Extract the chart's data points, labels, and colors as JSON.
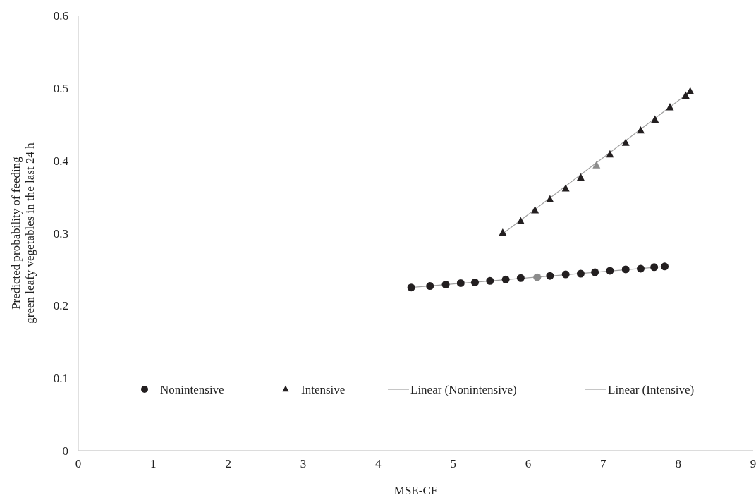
{
  "chart_data": {
    "type": "scatter",
    "xlabel": "MSE-CF",
    "ylabel": "Predicted probability of feeding green leafy vegetables in the last 24 h",
    "xlim": [
      0,
      9
    ],
    "ylim": [
      0,
      0.6
    ],
    "xticks": [
      0,
      1,
      2,
      3,
      4,
      5,
      6,
      7,
      8,
      9
    ],
    "yticks": [
      0,
      0.1,
      0.2,
      0.3,
      0.4,
      0.5,
      0.6
    ],
    "grid": false,
    "legend": "bottom",
    "series": [
      {
        "name": "Nonintensive",
        "marker": "circle",
        "color": "#231f20",
        "colors": [
          "#231f20",
          "#231f20",
          "#231f20",
          "#231f20",
          "#231f20",
          "#231f20",
          "#231f20",
          "#231f20",
          "#8c8c8c",
          "#231f20",
          "#231f20",
          "#231f20",
          "#231f20",
          "#231f20",
          "#231f20",
          "#231f20",
          "#231f20",
          "#231f20"
        ],
        "x": [
          4.44,
          4.69,
          4.9,
          5.1,
          5.29,
          5.49,
          5.7,
          5.9,
          6.12,
          6.29,
          6.5,
          6.7,
          6.89,
          7.09,
          7.3,
          7.5,
          7.68,
          7.82
        ],
        "values": [
          0.225,
          0.227,
          0.229,
          0.231,
          0.232,
          0.234,
          0.236,
          0.238,
          0.239,
          0.241,
          0.243,
          0.244,
          0.246,
          0.248,
          0.25,
          0.251,
          0.253,
          0.254
        ]
      },
      {
        "name": "Intensive",
        "marker": "triangle",
        "color": "#231f20",
        "colors": [
          "#231f20",
          "#231f20",
          "#231f20",
          "#231f20",
          "#231f20",
          "#231f20",
          "#8c8c8c",
          "#231f20",
          "#231f20",
          "#231f20",
          "#231f20",
          "#231f20",
          "#231f20",
          "#231f20"
        ],
        "x": [
          5.66,
          5.9,
          6.09,
          6.29,
          6.5,
          6.7,
          6.91,
          7.09,
          7.3,
          7.5,
          7.69,
          7.89,
          8.1,
          8.16
        ],
        "values": [
          0.3,
          0.316,
          0.331,
          0.346,
          0.361,
          0.376,
          0.393,
          0.408,
          0.424,
          0.441,
          0.456,
          0.473,
          0.489,
          0.495
        ]
      },
      {
        "name": "Linear (Nonintensive)",
        "type": "line",
        "color": "#a0a0a0",
        "x": [
          4.44,
          7.82
        ],
        "values": [
          0.225,
          0.254
        ]
      },
      {
        "name": "Linear (Intensive)",
        "type": "line",
        "color": "#a0a0a0",
        "x": [
          5.66,
          8.16
        ],
        "values": [
          0.299,
          0.495
        ]
      }
    ]
  }
}
